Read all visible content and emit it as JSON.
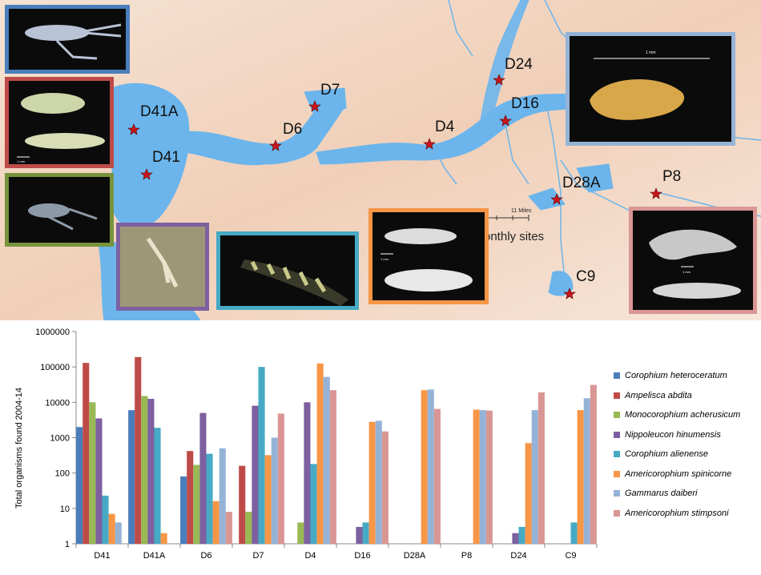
{
  "map": {
    "sites": [
      {
        "name": "D41A"
      },
      {
        "name": "D41"
      },
      {
        "name": "D7"
      },
      {
        "name": "D6"
      },
      {
        "name": "D4"
      },
      {
        "name": "D24"
      },
      {
        "name": "D16"
      },
      {
        "name": "D28A"
      },
      {
        "name": "P8"
      },
      {
        "name": "C9"
      }
    ],
    "scale_label": "11 Miles",
    "legend_fragment": "onthly sites",
    "photo_labels": [
      "1 mm",
      "1 mm",
      "1 mm",
      "1 mm",
      "1 mm"
    ],
    "colors": {
      "water": "#6bb5ec",
      "land": "#f2d6c4",
      "star": "#c8151b"
    }
  },
  "chart_data": {
    "type": "bar",
    "log_scale": true,
    "ylabel": "Total organisms found 2004-14",
    "ylim": [
      1,
      1000000
    ],
    "yticks": [
      "1",
      "10",
      "100",
      "1000",
      "10000",
      "100000",
      "1000000"
    ],
    "categories": [
      "D41",
      "D41A",
      "D6",
      "D7",
      "D4",
      "D16",
      "D28A",
      "P8",
      "D24",
      "C9"
    ],
    "legend_position": "right",
    "series": [
      {
        "name": "Corophium heteroceratum",
        "color": "#4a7ebb",
        "values": [
          2000,
          6000,
          80,
          null,
          null,
          null,
          null,
          null,
          null,
          null
        ]
      },
      {
        "name": "Ampelisca abdita",
        "color": "#be4b48",
        "values": [
          130000,
          190000,
          420,
          160,
          null,
          null,
          null,
          null,
          null,
          null
        ]
      },
      {
        "name": "Monocorophium acherusicum",
        "color": "#98b954",
        "values": [
          10000,
          15000,
          170,
          8,
          4,
          null,
          null,
          null,
          null,
          null
        ]
      },
      {
        "name": "Nippoleucon hinumensis",
        "color": "#7d60a0",
        "values": [
          3500,
          12500,
          5000,
          8000,
          10000,
          3,
          null,
          null,
          2,
          null
        ]
      },
      {
        "name": "Corophium alienense",
        "color": "#46aac5",
        "values": [
          23,
          1900,
          350,
          100000,
          180,
          4,
          null,
          null,
          3,
          4
        ]
      },
      {
        "name": "Americorophium spinicorne",
        "color": "#f79646",
        "values": [
          7,
          2,
          16,
          320,
          125000,
          2800,
          22000,
          6200,
          700,
          6000
        ]
      },
      {
        "name": "Gammarus daiberi",
        "color": "#95b3d7",
        "values": [
          4,
          null,
          500,
          1000,
          52000,
          3000,
          23000,
          6000,
          6000,
          13000
        ]
      },
      {
        "name": "Americorophium stimpsoni",
        "color": "#d99694",
        "values": [
          null,
          null,
          8,
          4800,
          22000,
          1500,
          6500,
          5800,
          19000,
          31000
        ]
      }
    ]
  }
}
